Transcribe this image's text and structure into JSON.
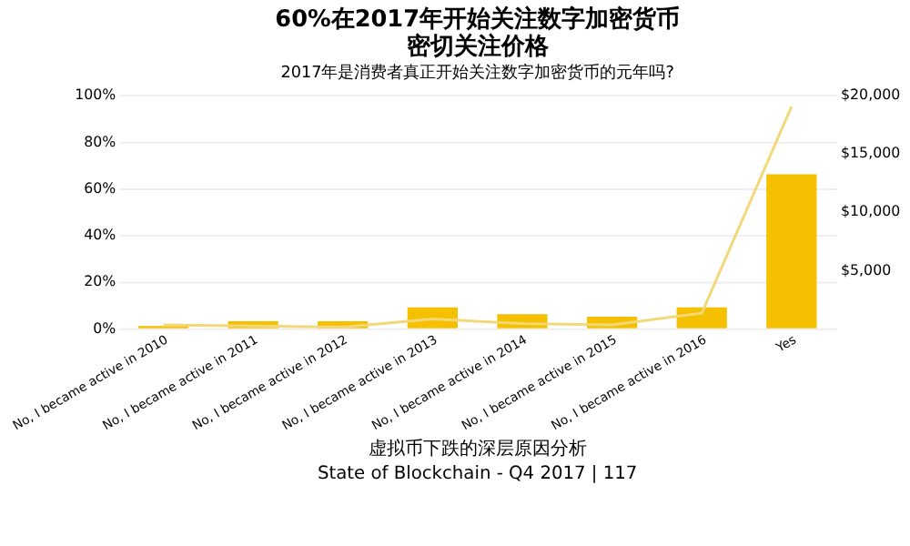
{
  "chart_data": {
    "type": "bar",
    "title": [
      "60%在2017年开始关注数字加密货币",
      "密切关注价格"
    ],
    "subtitle": "2017年是消费者真正开始关注数字加密货币的元年吗?",
    "categories": [
      "No, I became active in 2010",
      "No, I became active in 2011",
      "No, I became active in 2012",
      "No, I became active in 2013",
      "No, I became active in 2014",
      "No, I became active in 2015",
      "No, I became active in 2016",
      "Yes"
    ],
    "series": [
      {
        "color": "#f5c000",
        "values": [
          1,
          3,
          3,
          9,
          6,
          5,
          9,
          66
        ]
      },
      {
        "type": "line",
        "color": "#f3d877",
        "axis": "y2",
        "values": [
          300,
          200,
          100,
          800,
          400,
          300,
          1300,
          19000
        ]
      }
    ],
    "ylim": [
      0,
      100
    ],
    "yticks": [
      {
        "value": 0,
        "label": "0%"
      },
      {
        "value": 20,
        "label": "20%"
      },
      {
        "value": 40,
        "label": "40%"
      },
      {
        "value": 60,
        "label": "60%"
      },
      {
        "value": 80,
        "label": "80%"
      },
      {
        "value": 100,
        "label": "100%"
      }
    ],
    "y2lim": [
      0,
      20000
    ],
    "y2ticks": [
      {
        "value": 5000,
        "label": "$5,000"
      },
      {
        "value": 10000,
        "label": "$10,000"
      },
      {
        "value": 15000,
        "label": "$15,000"
      },
      {
        "value": 20000,
        "label": "$20,000"
      }
    ],
    "grid": "y",
    "annotations": [
      "虚拟币下跌的深层原因分析",
      "State of Blockchain - Q4 2017 | 117"
    ]
  }
}
